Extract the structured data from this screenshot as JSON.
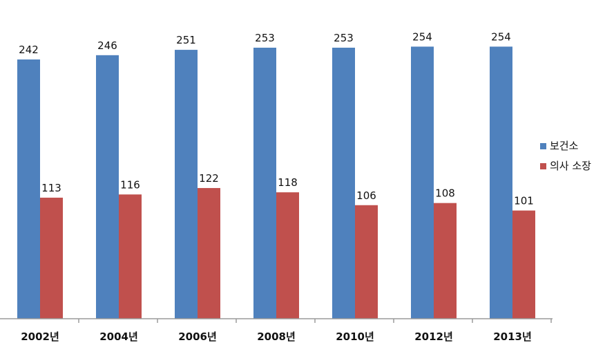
{
  "chart_data": {
    "type": "bar",
    "title": "",
    "xlabel": "",
    "ylabel": "",
    "categories": [
      "2002년",
      "2004년",
      "2006년",
      "2008년",
      "2010년",
      "2012년",
      "2013년"
    ],
    "series": [
      {
        "name": "보건소",
        "color": "#4F81BD",
        "values": [
          242,
          246,
          251,
          253,
          253,
          254,
          254
        ]
      },
      {
        "name": "의사 소장",
        "color": "#C0504D",
        "values": [
          113,
          116,
          122,
          118,
          106,
          108,
          101
        ]
      }
    ],
    "ylim": [
      0,
      300
    ],
    "grid": false,
    "legend": "right"
  }
}
